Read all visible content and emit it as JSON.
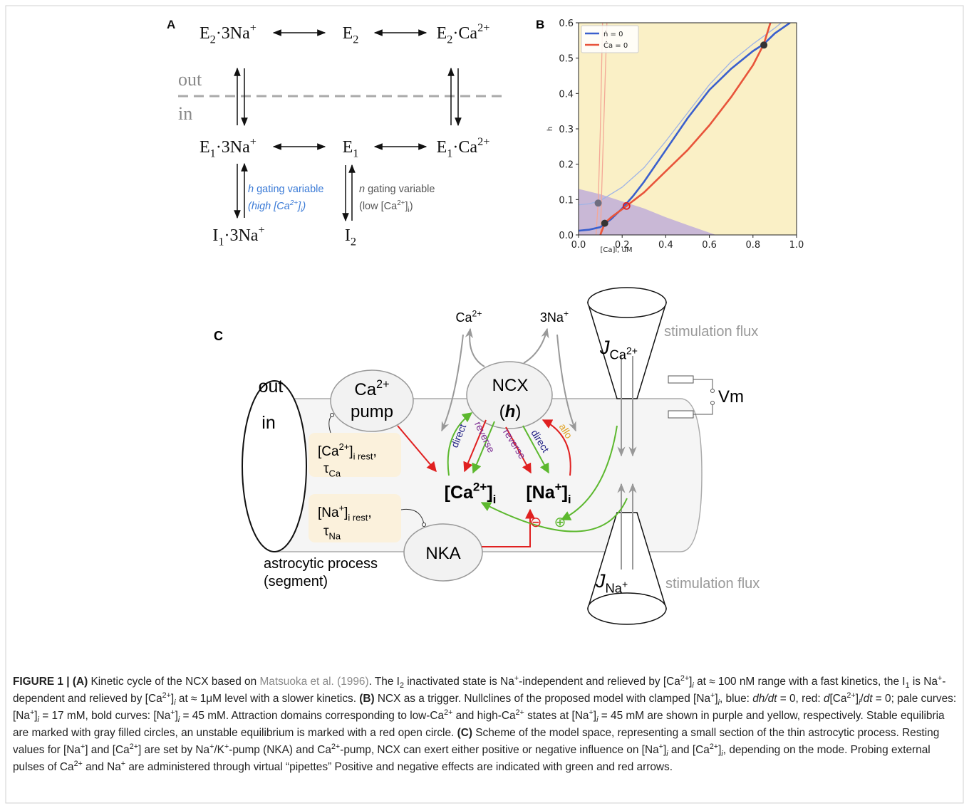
{
  "panel_a": {
    "label": "A",
    "top_row": [
      [
        {
          "t": "E"
        },
        {
          "sub": "2"
        },
        {
          "t": "·3Na"
        },
        {
          "sup": "+"
        }
      ],
      [
        {
          "t": "E"
        },
        {
          "sub": "2"
        }
      ],
      [
        {
          "t": "E"
        },
        {
          "sub": "2"
        },
        {
          "t": "·Ca"
        },
        {
          "sup": "2+"
        }
      ]
    ],
    "middle_row": [
      [
        {
          "t": "E"
        },
        {
          "sub": "1"
        },
        {
          "t": "·3Na"
        },
        {
          "sup": "+"
        }
      ],
      [
        {
          "t": "E"
        },
        {
          "sub": "1"
        }
      ],
      [
        {
          "t": "E"
        },
        {
          "sub": "1"
        },
        {
          "t": "·Ca"
        },
        {
          "sup": "2+"
        }
      ]
    ],
    "bottom_row": [
      [
        {
          "t": "I"
        },
        {
          "sub": "1"
        },
        {
          "t": "·3Na"
        },
        {
          "sup": "+"
        }
      ],
      [
        {
          "t": "I"
        },
        {
          "sub": "2"
        }
      ]
    ],
    "out": "out",
    "in": "in",
    "h_text": [
      {
        "i": "h"
      },
      {
        "t": " gating variable"
      }
    ],
    "h_cond": [
      {
        "i": "(high [Ca"
      },
      {
        "sup": "2+"
      },
      {
        "i": "]"
      },
      {
        "sub": "i"
      },
      {
        "i": ")"
      }
    ],
    "n_text": [
      {
        "i": "n"
      },
      {
        "t": " gating variable"
      }
    ],
    "n_cond": [
      {
        "t": "(low [Ca"
      },
      {
        "sup": "2+"
      },
      {
        "t": "]"
      },
      {
        "sub": "i"
      },
      {
        "t": ")"
      }
    ]
  },
  "chart_data": {
    "type": "line",
    "label": "B",
    "xlabel": "[Ca]i, uM",
    "ylabel": "h",
    "xlim": [
      0,
      1
    ],
    "ylim": [
      0,
      0.6
    ],
    "xticks": [
      {
        "value": 0,
        "label": "0.0"
      },
      0.2,
      0.4,
      0.6,
      0.8,
      {
        "value": 1,
        "label": "1.0"
      }
    ],
    "yticks": [
      {
        "value": 0,
        "label": "0.0"
      },
      0.1,
      0.2,
      0.3,
      0.4,
      0.5,
      0.6
    ],
    "background": "#faf0c6",
    "legend": "upper left",
    "low_domain": {
      "color": "#c9b8d6",
      "x": [
        0,
        0.1,
        0.2,
        0.3,
        0.4,
        0.5,
        0.63
      ],
      "values": [
        0.13,
        0.115,
        0.095,
        0.075,
        0.05,
        0.028,
        0
      ]
    },
    "series": [
      {
        "color": "#9fb4e6",
        "linewidth": 1.3,
        "x": [
          0,
          0.05,
          0.1,
          0.2,
          0.3,
          0.4,
          0.5,
          0.6,
          0.7,
          0.8,
          0.9,
          0.93
        ],
        "values": [
          0.085,
          0.088,
          0.097,
          0.135,
          0.19,
          0.265,
          0.345,
          0.425,
          0.49,
          0.54,
          0.585,
          0.6
        ]
      },
      {
        "color": "#f4a896",
        "linewidth": 1.3,
        "x": [
          0.08,
          0.09,
          0.1,
          0.11
        ],
        "values": [
          0,
          0.09,
          0.3,
          0.6
        ]
      },
      {
        "color": "#f4a896",
        "linewidth": 1.3,
        "x": [
          0.1,
          0.11,
          0.12,
          0.13
        ],
        "values": [
          0,
          0.2,
          0.4,
          0.6
        ]
      },
      {
        "name": "ṅ = 0",
        "color": "#3a5fcd",
        "linewidth": 2.6,
        "x": [
          0,
          0.05,
          0.1,
          0.15,
          0.2,
          0.25,
          0.3,
          0.4,
          0.5,
          0.6,
          0.7,
          0.8,
          0.85,
          0.9,
          0.97
        ],
        "values": [
          0.012,
          0.015,
          0.022,
          0.045,
          0.075,
          0.11,
          0.15,
          0.24,
          0.33,
          0.41,
          0.47,
          0.52,
          0.54,
          0.57,
          0.6
        ]
      },
      {
        "name": "Ċa = 0",
        "color": "#e8543a",
        "linewidth": 2.6,
        "x": [
          0.1,
          0.12,
          0.15,
          0.22,
          0.3,
          0.4,
          0.5,
          0.6,
          0.7,
          0.8,
          0.85,
          0.88
        ],
        "values": [
          0,
          0.033,
          0.05,
          0.082,
          0.12,
          0.18,
          0.24,
          0.31,
          0.39,
          0.48,
          0.54,
          0.6
        ]
      }
    ],
    "equilibria": {
      "x": [
        0.09,
        0.12,
        0.22,
        0.85
      ],
      "values": [
        0.09,
        0.033,
        0.082,
        0.537
      ],
      "colors": [
        "#6e6e80",
        "#333333",
        "#e02020",
        "#333333"
      ],
      "filled": [
        true,
        true,
        false,
        true
      ]
    }
  },
  "panel_c": {
    "label": "C",
    "ca_out": [
      {
        "t": "Ca"
      },
      {
        "sup": "2+"
      }
    ],
    "na_out": [
      {
        "t": "3Na"
      },
      {
        "sup": "+"
      }
    ],
    "out": "out",
    "in": "in",
    "ca_pump_name": [
      {
        "t": "Ca"
      },
      {
        "sup": "2+"
      }
    ],
    "ca_pump_word": "pump",
    "ncx": "NCX",
    "ncx_var": [
      {
        "t": "("
      },
      {
        "bi": "h"
      },
      {
        "t": ")"
      }
    ],
    "j_ca": [
      {
        "i": "J"
      },
      {
        "sub": "Ca"
      },
      {
        "subsup": "2+"
      }
    ],
    "j_na": [
      {
        "i": "J"
      },
      {
        "sub": "Na"
      },
      {
        "subsup": "+"
      }
    ],
    "stim_top": "stimulation flux",
    "stim_bottom": "stimulation flux",
    "vm": "Vm",
    "ca_rest": [
      {
        "t": "[Ca"
      },
      {
        "sup": "2+"
      },
      {
        "t": "]"
      },
      {
        "sub": "i rest"
      },
      {
        "t": ","
      }
    ],
    "tau_ca": [
      {
        "t": "τ"
      },
      {
        "sub": "Ca"
      }
    ],
    "na_rest": [
      {
        "t": "[Na"
      },
      {
        "sup": "+"
      },
      {
        "t": "]"
      },
      {
        "sub": "i rest"
      },
      {
        "t": ","
      }
    ],
    "tau_na": [
      {
        "t": "τ"
      },
      {
        "sub": "Na"
      }
    ],
    "ca_i": [
      {
        "t": "[Ca"
      },
      {
        "sup": "2+"
      },
      {
        "t": "]"
      },
      {
        "sub": "i"
      }
    ],
    "na_i": [
      {
        "t": "[Na"
      },
      {
        "sup": "+"
      },
      {
        "t": "]"
      },
      {
        "sub": "i"
      }
    ],
    "nka": "NKA",
    "arrow_labels": [
      "direct",
      "reverse",
      "reverse",
      "direct",
      "allo"
    ],
    "minus": "⊖",
    "plus": "⊕",
    "process": "astrocytic process",
    "segment": "(segment)"
  },
  "caption": [
    {
      "b": "FIGURE 1 | (A)"
    },
    {
      "t": " Kinetic cycle of the NCX based on "
    },
    {
      "link": "Matsuoka et al. (1996)"
    },
    {
      "t": ". The I"
    },
    {
      "sub": "2"
    },
    {
      "t": " inactivated state is Na"
    },
    {
      "sup": "+"
    },
    {
      "t": "-independent and relieved by [Ca"
    },
    {
      "sup": "2+"
    },
    {
      "t": "]"
    },
    {
      "subi": "i"
    },
    {
      "t": " at ≈ 100 nM range with a fast kinetics, the I"
    },
    {
      "sub": "1"
    },
    {
      "t": " is Na"
    },
    {
      "sup": "+"
    },
    {
      "t": "-dependent and relieved by [Ca"
    },
    {
      "sup": "2+"
    },
    {
      "t": "]"
    },
    {
      "subi": "i"
    },
    {
      "t": " at ≈ 1μM level with a slower kinetics. "
    },
    {
      "b": "(B)"
    },
    {
      "t": " NCX as a trigger. Nullclines of the proposed model with clamped [Na"
    },
    {
      "sup": "+"
    },
    {
      "t": "]"
    },
    {
      "subi": "i"
    },
    {
      "t": ", blue: "
    },
    {
      "i": "dh/dt"
    },
    {
      "t": " = 0, red: "
    },
    {
      "i": "d"
    },
    {
      "t": "[Ca"
    },
    {
      "sup": "2+"
    },
    {
      "t": "]"
    },
    {
      "subi": "i"
    },
    {
      "t": "/"
    },
    {
      "i": "dt"
    },
    {
      "t": " = 0; pale curves: [Na"
    },
    {
      "sup": "+"
    },
    {
      "t": "]"
    },
    {
      "subi": "i"
    },
    {
      "t": " = 17 mM, bold curves: [Na"
    },
    {
      "sup": "+"
    },
    {
      "t": "]"
    },
    {
      "subi": "i"
    },
    {
      "t": " = 45 mM. Attraction domains corresponding to low-Ca"
    },
    {
      "sup": "2+"
    },
    {
      "t": " and high-Ca"
    },
    {
      "sup": "2+"
    },
    {
      "t": " states at [Na"
    },
    {
      "sup": "+"
    },
    {
      "t": "]"
    },
    {
      "subi": "i"
    },
    {
      "t": " = 45 mM are shown in purple and yellow, respectively. Stable equilibria are marked with gray filled circles, an unstable equilibrium is marked with a red open circle. "
    },
    {
      "b": "(C)"
    },
    {
      "t": " Scheme of the model space, representing a small section of the thin astrocytic process. Resting values for [Na"
    },
    {
      "sup": "+"
    },
    {
      "t": "] and [Ca"
    },
    {
      "sup": "2+"
    },
    {
      "t": "] are set by Na"
    },
    {
      "sup": "+"
    },
    {
      "t": "/K"
    },
    {
      "sup": "+"
    },
    {
      "t": "-pump (NKA) and Ca"
    },
    {
      "sup": "2+"
    },
    {
      "t": "-pump, NCX can exert either positive or negative influence on [Na"
    },
    {
      "sup": "+"
    },
    {
      "t": "]"
    },
    {
      "subi": "i"
    },
    {
      "t": " and [Ca"
    },
    {
      "sup": "2+"
    },
    {
      "t": "]"
    },
    {
      "subi": "i"
    },
    {
      "t": ", depending on the mode. Probing external pulses of Ca"
    },
    {
      "sup": "2+"
    },
    {
      "t": " and Na"
    },
    {
      "sup": "+"
    },
    {
      "t": " are administered through virtual “pipettes” Positive and negative effects are indicated with green and red arrows."
    }
  ]
}
